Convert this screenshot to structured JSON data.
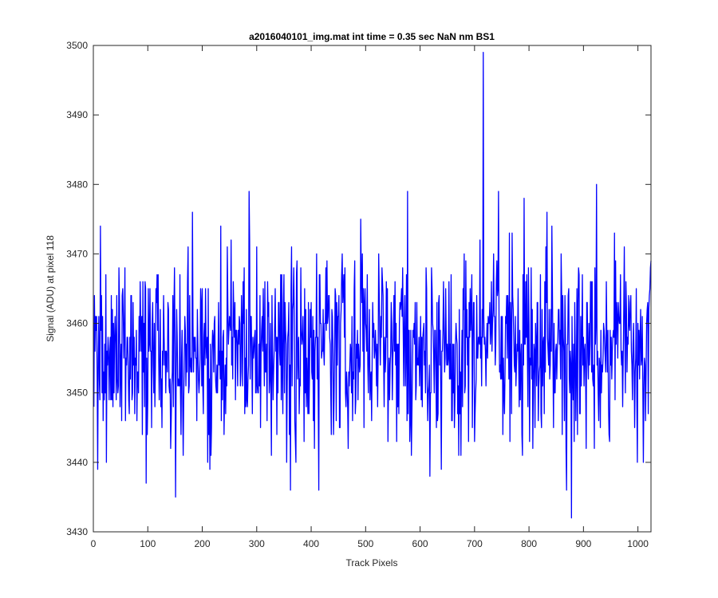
{
  "chart_data": {
    "type": "line",
    "title": "a2016040101_img.mat int time = 0.35 sec  NaN nm BS1",
    "xlabel": "Track Pixels",
    "ylabel": "Signal (ADU) at pixel 118",
    "xlim": [
      0,
      1024
    ],
    "ylim": [
      3430,
      3500
    ],
    "xticks": [
      0,
      100,
      200,
      300,
      400,
      500,
      600,
      700,
      800,
      900,
      1000
    ],
    "yticks": [
      3430,
      3440,
      3450,
      3460,
      3470,
      3480,
      3490,
      3500
    ],
    "grid": false,
    "series": [
      {
        "color": "#0000ff",
        "noise": {
          "n": 1024,
          "mean": 3456,
          "sd": 7,
          "min": 3432,
          "max": 3479,
          "seed": 20160401
        },
        "notable_points": [
          {
            "x": 1,
            "y": 3448
          },
          {
            "x": 151,
            "y": 3435
          },
          {
            "x": 234,
            "y": 3474
          },
          {
            "x": 577,
            "y": 3479
          },
          {
            "x": 716,
            "y": 3499
          },
          {
            "x": 744,
            "y": 3479
          },
          {
            "x": 791,
            "y": 3478
          },
          {
            "x": 878,
            "y": 3432
          },
          {
            "x": 924,
            "y": 3480
          },
          {
            "x": 1010,
            "y": 3440
          },
          {
            "x": 1024,
            "y": 3469
          }
        ]
      }
    ]
  }
}
